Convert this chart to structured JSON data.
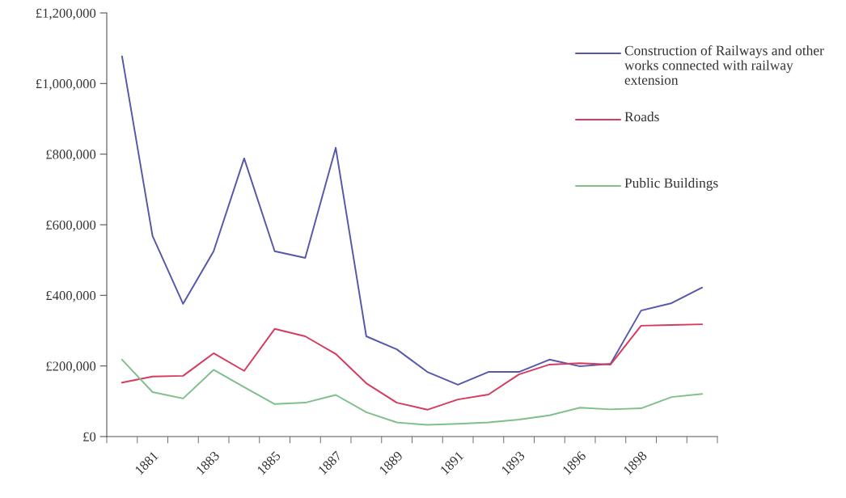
{
  "chart_data": {
    "type": "line",
    "categories": [
      null,
      "1881",
      null,
      "1883",
      null,
      "1885",
      null,
      "1887",
      null,
      "1889",
      null,
      "1891",
      null,
      "1893",
      null,
      "1896",
      null,
      "1898",
      null,
      null
    ],
    "series": [
      {
        "name": "Construction of Railways and other works connected with railway extension",
        "color": "#5558a8",
        "values": [
          1077000,
          568000,
          376000,
          525000,
          788000,
          525000,
          506000,
          818000,
          284000,
          247000,
          183000,
          147000,
          183000,
          183000,
          218000,
          199000,
          206000,
          357000,
          378000,
          422000
        ]
      },
      {
        "name": "Roads",
        "color": "#d63a5e",
        "values": [
          153000,
          170000,
          172000,
          236000,
          186000,
          305000,
          284000,
          234000,
          151000,
          96000,
          76000,
          105000,
          119000,
          176000,
          204000,
          208000,
          204000,
          314000,
          316000,
          318000
        ]
      },
      {
        "name": "Public Buildings",
        "color": "#7fbf8c",
        "values": [
          218000,
          126000,
          108000,
          189000,
          140000,
          92000,
          96000,
          118000,
          69000,
          40000,
          33000,
          36000,
          40000,
          48000,
          60000,
          82000,
          77000,
          80000,
          112000,
          121000
        ]
      }
    ],
    "ylim": [
      0,
      1200000
    ],
    "yticks": [
      {
        "value": 0,
        "label": "£0"
      },
      {
        "value": 200000,
        "label": "£200,000"
      },
      {
        "value": 400000,
        "label": "£400,000"
      },
      {
        "value": 600000,
        "label": "£600,000"
      },
      {
        "value": 800000,
        "label": "£800,000"
      },
      {
        "value": 1000000,
        "label": "£1,000,000"
      },
      {
        "value": 1200000,
        "label": "£1,200,000"
      }
    ],
    "grid": false,
    "legend": "top right",
    "marker": "none",
    "line_style": "solid"
  }
}
